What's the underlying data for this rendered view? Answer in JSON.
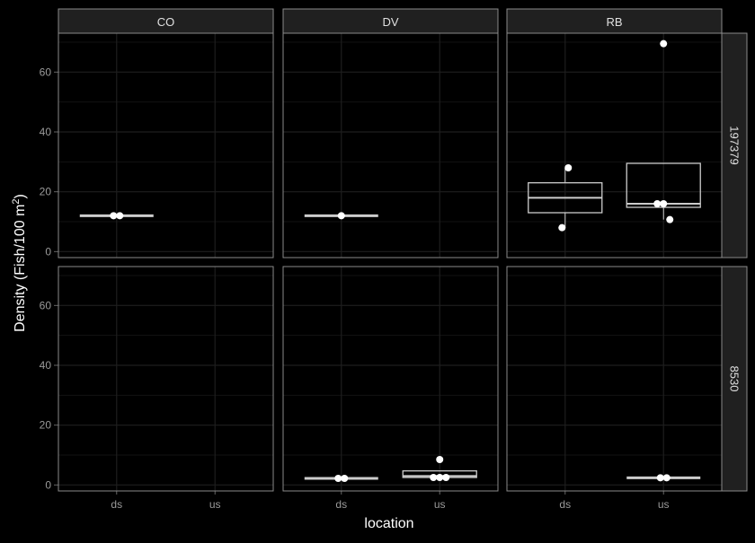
{
  "chart_data": {
    "type": "boxplot",
    "xlabel": "location",
    "ylabel_main": "Density (Fish/100 m",
    "ylabel_sup": "2",
    "ylabel_close": ")",
    "ylim": [
      -2,
      73
    ],
    "yticks": [
      0,
      20,
      40,
      60
    ],
    "ytick_labels": [
      "0",
      "20",
      "40",
      "60"
    ],
    "x_categories": [
      "ds",
      "us"
    ],
    "col_facets": [
      "CO",
      "DV",
      "RB"
    ],
    "row_facets": [
      "197379",
      "8530"
    ],
    "colors": {
      "background": "#000000",
      "panel": "#000000",
      "strip": "#202020",
      "grid_major": "#1e1e1e",
      "grid_minor": "#121212",
      "box": "#cccccc",
      "point": "#ffffff"
    },
    "panels": [
      {
        "row": "197379",
        "col": "CO",
        "groups": [
          {
            "x": "ds",
            "q1": 12,
            "median": 12,
            "q3": 12,
            "lower": 12,
            "upper": 12,
            "points": [
              12,
              12
            ],
            "outliers": []
          }
        ]
      },
      {
        "row": "197379",
        "col": "DV",
        "groups": [
          {
            "x": "ds",
            "q1": 12,
            "median": 12,
            "q3": 12,
            "lower": 12,
            "upper": 12,
            "points": [
              12
            ],
            "outliers": []
          }
        ]
      },
      {
        "row": "197379",
        "col": "RB",
        "groups": [
          {
            "x": "ds",
            "q1": 13,
            "median": 18,
            "q3": 23,
            "lower": 8,
            "upper": 28,
            "points": [
              8,
              28
            ],
            "outliers": []
          },
          {
            "x": "us",
            "q1": 14.8,
            "median": 16,
            "q3": 29.5,
            "lower": 10.7,
            "upper": 29.5,
            "points": [
              16,
              16,
              10.7
            ],
            "outliers": [
              69.5
            ]
          }
        ]
      },
      {
        "row": "8530",
        "col": "CO",
        "groups": []
      },
      {
        "row": "8530",
        "col": "DV",
        "groups": [
          {
            "x": "ds",
            "q1": 2.2,
            "median": 2.2,
            "q3": 2.2,
            "lower": 2.2,
            "upper": 2.2,
            "points": [
              2.2,
              2.2
            ],
            "outliers": []
          },
          {
            "x": "us",
            "q1": 2.5,
            "median": 3.0,
            "q3": 4.7,
            "lower": 2.5,
            "upper": 4.7,
            "points": [
              2.5,
              2.5,
              2.5
            ],
            "outliers": [
              8.5
            ]
          }
        ]
      },
      {
        "row": "8530",
        "col": "RB",
        "groups": [
          {
            "x": "us",
            "q1": 2.4,
            "median": 2.4,
            "q3": 2.4,
            "lower": 2.4,
            "upper": 2.4,
            "points": [
              2.4,
              2.4
            ],
            "outliers": []
          }
        ]
      }
    ]
  }
}
